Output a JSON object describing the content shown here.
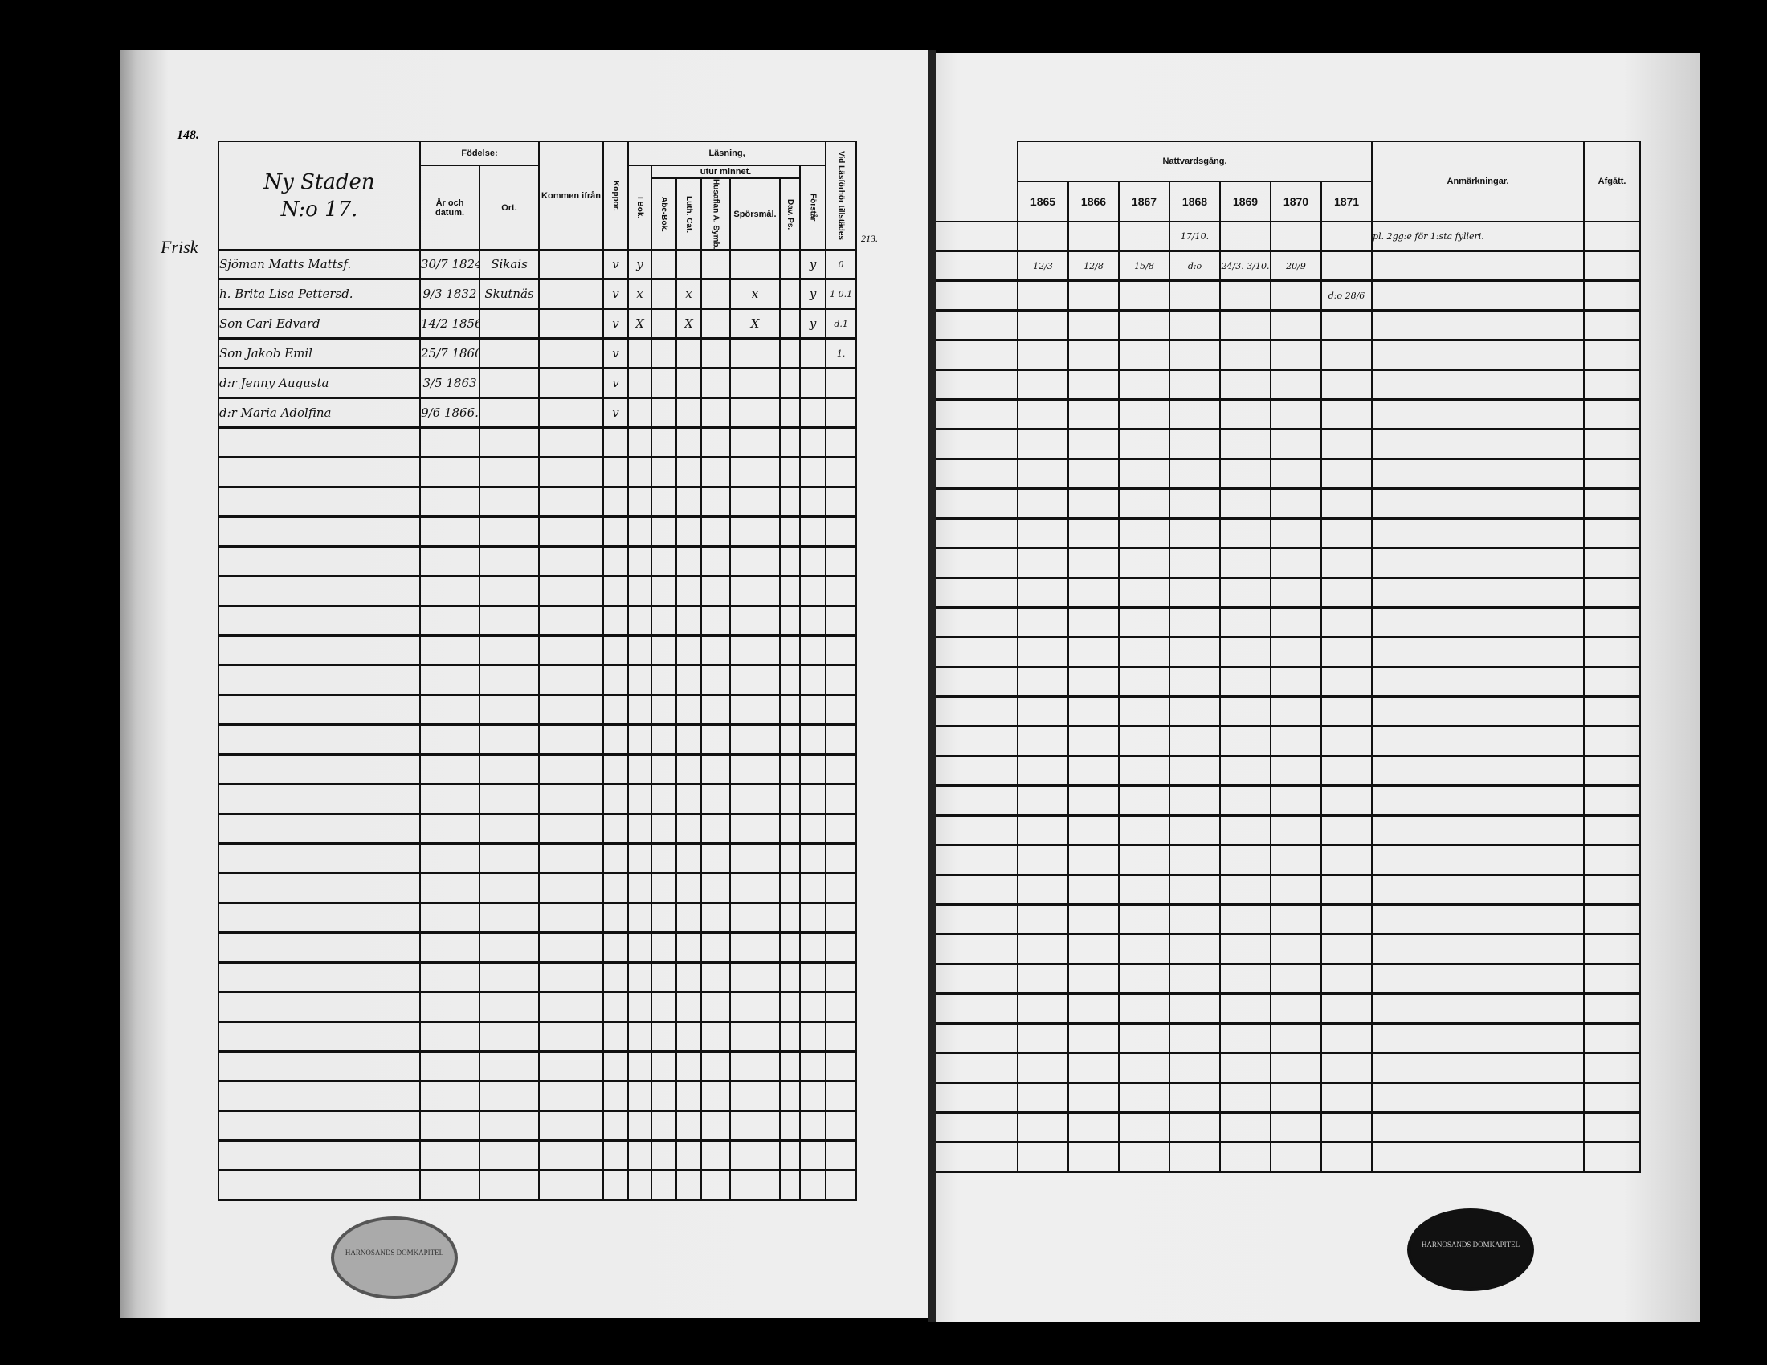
{
  "left_page": {
    "page_number": "148.",
    "margin_name": "Frisk",
    "heading": {
      "place": "Ny Staden",
      "number": "N:o 17."
    },
    "headers": {
      "fodelse": "Födelse:",
      "ar": "År och datum.",
      "ort": "Ort.",
      "kommen": "Kommen ifrån",
      "koppor": "Koppor.",
      "lasning": "Läsning,",
      "utur_minnet": "utur minnet.",
      "i_bok": "I Bok.",
      "abc": "Abc-Bok.",
      "luth": "Luth. Cat.",
      "husaflan": "Husaflan A. Symb.",
      "spors": "Spörsmål.",
      "dav": "Dav. Ps.",
      "forstar": "Förstår",
      "vid": "Vid Läsförhör tillstädes"
    },
    "margin_number": "213.",
    "rows": [
      {
        "name": "Sjöman Matts Mattsf.",
        "ar": "30/7 1824",
        "ort": "Sikais",
        "koppor": "v",
        "i_bok": "y",
        "luth": "",
        "spors": "",
        "forstar": "y",
        "vid": "0"
      },
      {
        "name": "h. Brita Lisa Pettersd.",
        "ar": "9/3 1832",
        "ort": "Skutnäs",
        "koppor": "v",
        "i_bok": "x",
        "luth": "x",
        "spors": "x",
        "forstar": "y",
        "vid": "1 0.1"
      },
      {
        "name": "Son Carl Edvard",
        "ar": "14/2 1856",
        "ort": "",
        "koppor": "v",
        "i_bok": "X",
        "luth": "X",
        "spors": "X",
        "forstar": "y",
        "vid": "d.1"
      },
      {
        "name": "Son Jakob Emil",
        "ar": "25/7 1860",
        "ort": "",
        "koppor": "v",
        "i_bok": "",
        "luth": "",
        "spors": "",
        "forstar": "",
        "vid": "1."
      },
      {
        "name": "d:r Jenny Augusta",
        "ar": "3/5 1863",
        "ort": "",
        "koppor": "v",
        "i_bok": "",
        "luth": "",
        "spors": "",
        "forstar": "",
        "vid": ""
      },
      {
        "name": "d:r Maria Adolfina",
        "ar": "9/6 1866.",
        "ort": "",
        "koppor": "v",
        "i_bok": "",
        "luth": "",
        "spors": "",
        "forstar": "",
        "vid": ""
      }
    ],
    "stamp_text": "HÄRNÖSANDS DOMKAPITEL"
  },
  "right_page": {
    "headers": {
      "nattvard": "Nattvardsgång.",
      "years": [
        "1865",
        "1866",
        "1867",
        "1868",
        "1869",
        "1870",
        "1871"
      ],
      "anm": "Anmärkningar.",
      "afgatt": "Afgått."
    },
    "rows": [
      {
        "years": [
          "",
          "",
          "",
          "17/10.",
          "",
          "",
          ""
        ],
        "anm": "pl. 2gg:e för 1:sta fylleri."
      },
      {
        "years": [
          "12/3",
          "12/8",
          "15/8",
          "d:o",
          "24/3. 3/10.",
          "20/9",
          ""
        ],
        "anm": ""
      },
      {
        "years": [
          "",
          "",
          "",
          "",
          "",
          "",
          "d:o 28/6"
        ],
        "anm": ""
      }
    ],
    "stamp_text": "HÄRNÖSANDS DOMKAPITEL"
  }
}
